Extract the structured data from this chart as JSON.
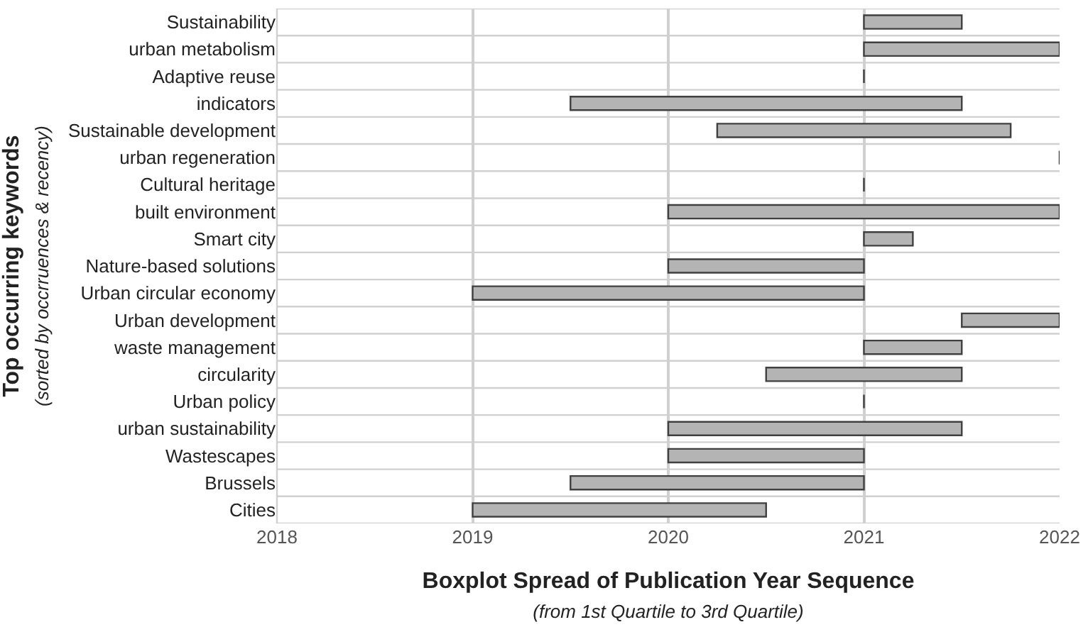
{
  "chart_data": {
    "type": "bar",
    "orientation": "horizontal",
    "categories": [
      "Sustainability",
      "urban metabolism",
      "Adaptive reuse",
      "indicators",
      "Sustainable development",
      "urban regeneration",
      "Cultural heritage",
      "built environment",
      "Smart city",
      "Nature-based solutions",
      "Urban circular economy",
      "Urban development",
      "waste management",
      "circularity",
      "Urban policy",
      "urban sustainability",
      "Wastescapes",
      "Brussels",
      "Cities"
    ],
    "base": [
      2021,
      2021,
      2021,
      2019.5,
      2020.25,
      2022,
      2021,
      2020,
      2021,
      2020,
      2019,
      2021.5,
      2021,
      2020.5,
      2021,
      2020,
      2020,
      2019.5,
      2019
    ],
    "values": [
      0.5,
      1,
      0,
      2,
      1.5,
      0,
      0,
      2,
      0.25,
      1,
      2,
      0.5,
      0.5,
      1,
      0,
      1.5,
      1,
      1.5,
      1.5
    ],
    "colors": [
      "#b4b4b4",
      "#b4b4b4",
      "#404040",
      "#b4b4b4",
      "#b4b4b4",
      "#404040",
      "#404040",
      "#b4b4b4",
      "#b4b4b4",
      "#b4b4b4",
      "#b4b4b4",
      "#b4b4b4",
      "#b4b4b4",
      "#b4b4b4",
      "#404040",
      "#b4b4b4",
      "#b4b4b4",
      "#b4b4b4",
      "#b4b4b4"
    ],
    "xlim": [
      2018,
      2022
    ],
    "xticks": [
      2018,
      2019,
      2020,
      2021,
      2022
    ],
    "xlabel": "Boxplot Spread of Publication Year Sequence\n(from 1st Quartile to 3rd Quartile)",
    "ylabel": "Top occurring keywords\n(sorted by occrruences & recency)",
    "grid": true
  }
}
